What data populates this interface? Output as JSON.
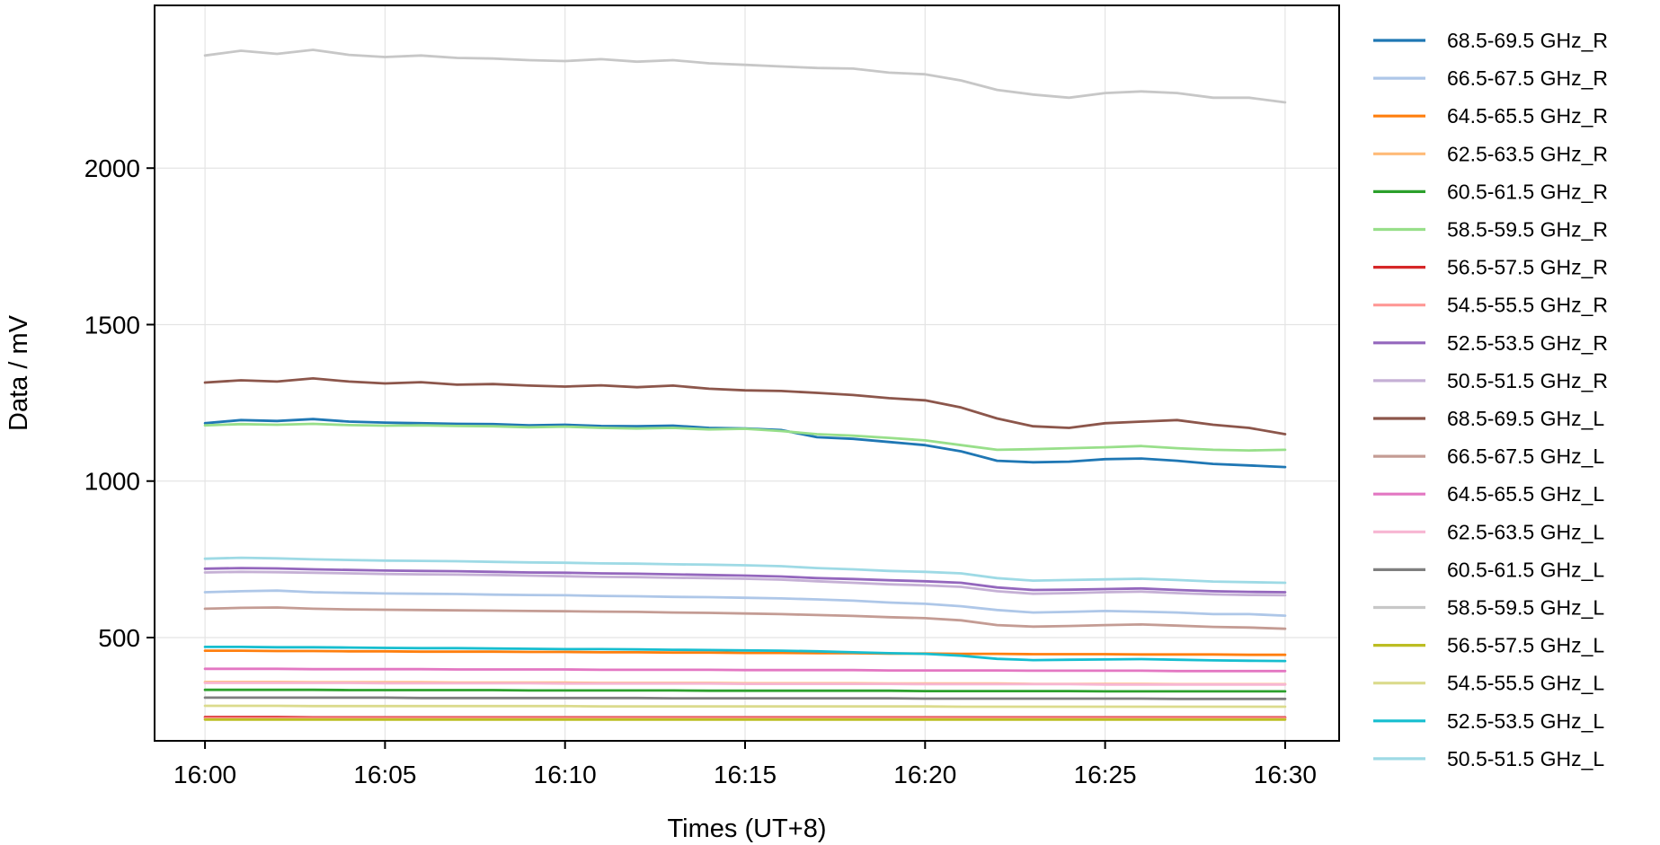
{
  "chart_data": {
    "type": "line",
    "title": "",
    "xlabel": "Times (UT+8)",
    "ylabel": "Data / mV",
    "x_ticks": [
      "16:00",
      "16:05",
      "16:10",
      "16:15",
      "16:20",
      "16:25",
      "16:30"
    ],
    "x_tick_minutes": [
      0,
      5,
      10,
      15,
      20,
      25,
      30
    ],
    "xlim_minutes": [
      -1.4,
      31.5
    ],
    "y_ticks": [
      500,
      1000,
      1500,
      2000
    ],
    "ylim": [
      170,
      2520
    ],
    "grid": true,
    "legend": "right, outside plot",
    "x_minutes": [
      0,
      1,
      2,
      3,
      4,
      5,
      6,
      7,
      8,
      9,
      10,
      11,
      12,
      13,
      14,
      15,
      16,
      17,
      18,
      19,
      20,
      21,
      22,
      23,
      24,
      25,
      26,
      27,
      28,
      29,
      30
    ],
    "series": [
      {
        "name": "68.5-69.5 GHz_R",
        "color": "#1f77b4",
        "values": [
          1185,
          1195,
          1192,
          1198,
          1190,
          1187,
          1185,
          1183,
          1182,
          1178,
          1180,
          1176,
          1175,
          1177,
          1170,
          1168,
          1163,
          1140,
          1135,
          1125,
          1115,
          1095,
          1065,
          1060,
          1062,
          1070,
          1072,
          1065,
          1055,
          1050,
          1045
        ]
      },
      {
        "name": "66.5-67.5 GHz_R",
        "color": "#aec7e8",
        "values": [
          645,
          648,
          650,
          645,
          643,
          641,
          640,
          639,
          637,
          636,
          635,
          633,
          632,
          630,
          629,
          627,
          625,
          622,
          618,
          612,
          608,
          600,
          588,
          580,
          582,
          585,
          583,
          580,
          575,
          575,
          570
        ]
      },
      {
        "name": "64.5-65.5 GHz_R",
        "color": "#ff7f0e",
        "values": [
          458,
          458,
          457,
          457,
          456,
          456,
          455,
          455,
          455,
          454,
          454,
          453,
          453,
          452,
          452,
          451,
          451,
          450,
          450,
          449,
          449,
          448,
          448,
          447,
          447,
          447,
          446,
          446,
          446,
          445,
          445
        ]
      },
      {
        "name": "62.5-63.5 GHz_R",
        "color": "#ffbb78",
        "values": [
          358,
          358,
          358,
          357,
          357,
          357,
          357,
          356,
          356,
          356,
          356,
          355,
          355,
          355,
          355,
          354,
          354,
          354,
          354,
          353,
          353,
          353,
          353,
          352,
          352,
          352,
          352,
          351,
          351,
          351,
          351
        ]
      },
      {
        "name": "60.5-61.5 GHz_R",
        "color": "#2ca02c",
        "values": [
          333,
          333,
          333,
          333,
          332,
          332,
          332,
          332,
          332,
          331,
          331,
          331,
          331,
          331,
          330,
          330,
          330,
          330,
          330,
          330,
          329,
          329,
          329,
          329,
          329,
          328,
          328,
          328,
          328,
          328,
          328
        ]
      },
      {
        "name": "58.5-59.5 GHz_R",
        "color": "#98df8a",
        "values": [
          1178,
          1182,
          1180,
          1183,
          1179,
          1177,
          1178,
          1176,
          1175,
          1172,
          1174,
          1170,
          1168,
          1170,
          1165,
          1167,
          1160,
          1150,
          1145,
          1138,
          1130,
          1115,
          1100,
          1102,
          1105,
          1108,
          1112,
          1105,
          1100,
          1098,
          1100
        ]
      },
      {
        "name": "56.5-57.5 GHz_R",
        "color": "#d62728",
        "values": [
          246,
          246,
          246,
          245,
          245,
          245,
          245,
          245,
          245,
          245,
          245,
          245,
          245,
          245,
          245,
          245,
          245,
          245,
          245,
          245,
          245,
          245,
          245,
          245,
          245,
          245,
          245,
          245,
          245,
          245,
          245
        ]
      },
      {
        "name": "54.5-55.5 GHz_R",
        "color": "#ff9896",
        "values": [
          242,
          242,
          242,
          242,
          242,
          242,
          242,
          242,
          242,
          242,
          242,
          242,
          242,
          242,
          242,
          242,
          242,
          242,
          242,
          242,
          242,
          242,
          242,
          242,
          242,
          242,
          242,
          242,
          242,
          242,
          242
        ]
      },
      {
        "name": "52.5-53.5 GHz_R",
        "color": "#9467bd",
        "values": [
          720,
          722,
          721,
          718,
          716,
          714,
          713,
          712,
          710,
          708,
          707,
          705,
          704,
          702,
          700,
          698,
          695,
          690,
          687,
          683,
          680,
          675,
          660,
          652,
          653,
          655,
          657,
          652,
          648,
          646,
          645
        ]
      },
      {
        "name": "50.5-51.5 GHz_R",
        "color": "#c5b0d5",
        "values": [
          708,
          710,
          709,
          707,
          705,
          703,
          702,
          701,
          700,
          698,
          696,
          694,
          693,
          691,
          690,
          688,
          685,
          680,
          675,
          670,
          667,
          662,
          648,
          640,
          642,
          645,
          647,
          642,
          638,
          636,
          635
        ]
      },
      {
        "name": "68.5-69.5 GHz_L",
        "color": "#8c564b",
        "values": [
          1315,
          1322,
          1318,
          1328,
          1318,
          1312,
          1316,
          1308,
          1310,
          1305,
          1302,
          1306,
          1300,
          1305,
          1295,
          1290,
          1288,
          1282,
          1275,
          1265,
          1258,
          1235,
          1200,
          1175,
          1170,
          1185,
          1190,
          1195,
          1180,
          1170,
          1150
        ]
      },
      {
        "name": "66.5-67.5 GHz_L",
        "color": "#c49c94",
        "values": [
          592,
          595,
          596,
          592,
          590,
          589,
          588,
          587,
          586,
          585,
          584,
          583,
          582,
          580,
          579,
          577,
          575,
          572,
          569,
          565,
          562,
          555,
          540,
          535,
          537,
          540,
          542,
          538,
          534,
          532,
          528
        ]
      },
      {
        "name": "64.5-65.5 GHz_L",
        "color": "#e377c2",
        "values": [
          400,
          400,
          400,
          399,
          399,
          399,
          399,
          398,
          398,
          398,
          398,
          397,
          397,
          397,
          397,
          396,
          396,
          396,
          396,
          395,
          395,
          395,
          395,
          394,
          394,
          394,
          394,
          393,
          393,
          393,
          393
        ]
      },
      {
        "name": "62.5-63.5 GHz_L",
        "color": "#f7b6d2",
        "values": [
          355,
          355,
          355,
          355,
          355,
          354,
          354,
          354,
          354,
          354,
          353,
          353,
          353,
          353,
          353,
          352,
          352,
          352,
          352,
          352,
          351,
          351,
          351,
          351,
          351,
          350,
          350,
          350,
          350,
          350,
          350
        ]
      },
      {
        "name": "60.5-61.5 GHz_L",
        "color": "#7f7f7f",
        "values": [
          308,
          308,
          308,
          308,
          308,
          308,
          307,
          307,
          307,
          307,
          307,
          307,
          307,
          306,
          306,
          306,
          306,
          306,
          306,
          306,
          305,
          305,
          305,
          305,
          305,
          305,
          305,
          304,
          304,
          304,
          304
        ]
      },
      {
        "name": "58.5-59.5 GHz_L",
        "color": "#c7c7c7",
        "values": [
          2360,
          2375,
          2365,
          2378,
          2362,
          2355,
          2360,
          2352,
          2350,
          2345,
          2342,
          2348,
          2340,
          2345,
          2335,
          2330,
          2325,
          2320,
          2318,
          2305,
          2300,
          2280,
          2250,
          2235,
          2225,
          2240,
          2245,
          2240,
          2225,
          2225,
          2210
        ]
      },
      {
        "name": "56.5-57.5 GHz_L",
        "color": "#bcbd22",
        "values": [
          238,
          238,
          238,
          238,
          238,
          238,
          238,
          238,
          238,
          238,
          238,
          238,
          238,
          238,
          238,
          238,
          238,
          238,
          238,
          238,
          238,
          238,
          238,
          238,
          238,
          238,
          238,
          238,
          238,
          238,
          238
        ]
      },
      {
        "name": "54.5-55.5 GHz_L",
        "color": "#dbdb8d",
        "values": [
          282,
          282,
          282,
          281,
          281,
          281,
          281,
          281,
          281,
          281,
          281,
          280,
          280,
          280,
          280,
          280,
          280,
          280,
          280,
          280,
          280,
          279,
          279,
          279,
          279,
          279,
          279,
          279,
          279,
          279,
          279
        ]
      },
      {
        "name": "52.5-53.5 GHz_L",
        "color": "#17becf",
        "values": [
          470,
          470,
          469,
          469,
          468,
          467,
          466,
          466,
          465,
          464,
          463,
          463,
          462,
          461,
          460,
          459,
          458,
          456,
          453,
          450,
          448,
          442,
          432,
          428,
          429,
          430,
          431,
          429,
          427,
          426,
          425
        ]
      },
      {
        "name": "50.5-51.5 GHz_L",
        "color": "#9edae5",
        "values": [
          752,
          755,
          753,
          750,
          748,
          746,
          745,
          744,
          742,
          740,
          739,
          737,
          736,
          734,
          733,
          731,
          728,
          722,
          718,
          713,
          710,
          705,
          690,
          682,
          684,
          686,
          688,
          684,
          679,
          677,
          675
        ]
      }
    ]
  }
}
